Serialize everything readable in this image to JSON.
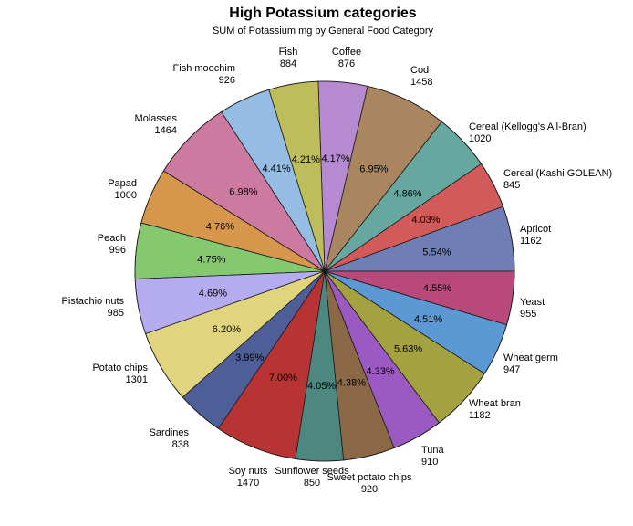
{
  "chart_data": {
    "type": "pie",
    "title": "High Potassium categories",
    "subtitle": "SUM of Potassium mg by General Food Category",
    "slices": [
      {
        "label": "Apricot",
        "value": 1162,
        "percent": "5.54%",
        "color": "#6f7fb5"
      },
      {
        "label": "Cereal (Kashi GOLEAN)",
        "value": 845,
        "percent": "4.03%",
        "color": "#d35a5a"
      },
      {
        "label": "Cereal (Kellogg's All-Bran)",
        "value": 1020,
        "percent": "4.86%",
        "color": "#66a8a0"
      },
      {
        "label": "Cod",
        "value": 1458,
        "percent": "6.95%",
        "color": "#a98660"
      },
      {
        "label": "Coffee",
        "value": 876,
        "percent": "4.17%",
        "color": "#b68ad0"
      },
      {
        "label": "Fish",
        "value": 884,
        "percent": "4.21%",
        "color": "#bdbd5c"
      },
      {
        "label": "Fish moochim",
        "value": 926,
        "percent": "4.41%",
        "color": "#95bde3"
      },
      {
        "label": "Molasses",
        "value": 1464,
        "percent": "6.98%",
        "color": "#cc7aa0"
      },
      {
        "label": "Papad",
        "value": 1000,
        "percent": "4.76%",
        "color": "#d6974c"
      },
      {
        "label": "Peach",
        "value": 996,
        "percent": "4.75%",
        "color": "#84c96f"
      },
      {
        "label": "Pistachio nuts",
        "value": 985,
        "percent": "4.69%",
        "color": "#b5acef"
      },
      {
        "label": "Potato chips",
        "value": 1301,
        "percent": "6.20%",
        "color": "#e0d47e"
      },
      {
        "label": "Sardines",
        "value": 838,
        "percent": "3.99%",
        "color": "#4d5e99"
      },
      {
        "label": "Soy nuts",
        "value": 1470,
        "percent": "7.00%",
        "color": "#b83434"
      },
      {
        "label": "Sunflower seeds",
        "value": 850,
        "percent": "4.05%",
        "color": "#4c8880"
      },
      {
        "label": "Sweet potato chips",
        "value": 920,
        "percent": "4.38%",
        "color": "#8b6846"
      },
      {
        "label": "Tuna",
        "value": 910,
        "percent": "4.33%",
        "color": "#9a5ac2"
      },
      {
        "label": "Wheat bran",
        "value": 1182,
        "percent": "5.63%",
        "color": "#a3a140"
      },
      {
        "label": "Wheat germ",
        "value": 947,
        "percent": "4.51%",
        "color": "#5b98d4"
      },
      {
        "label": "Yeast",
        "value": 955,
        "percent": "4.55%",
        "color": "#b8497a"
      }
    ]
  }
}
